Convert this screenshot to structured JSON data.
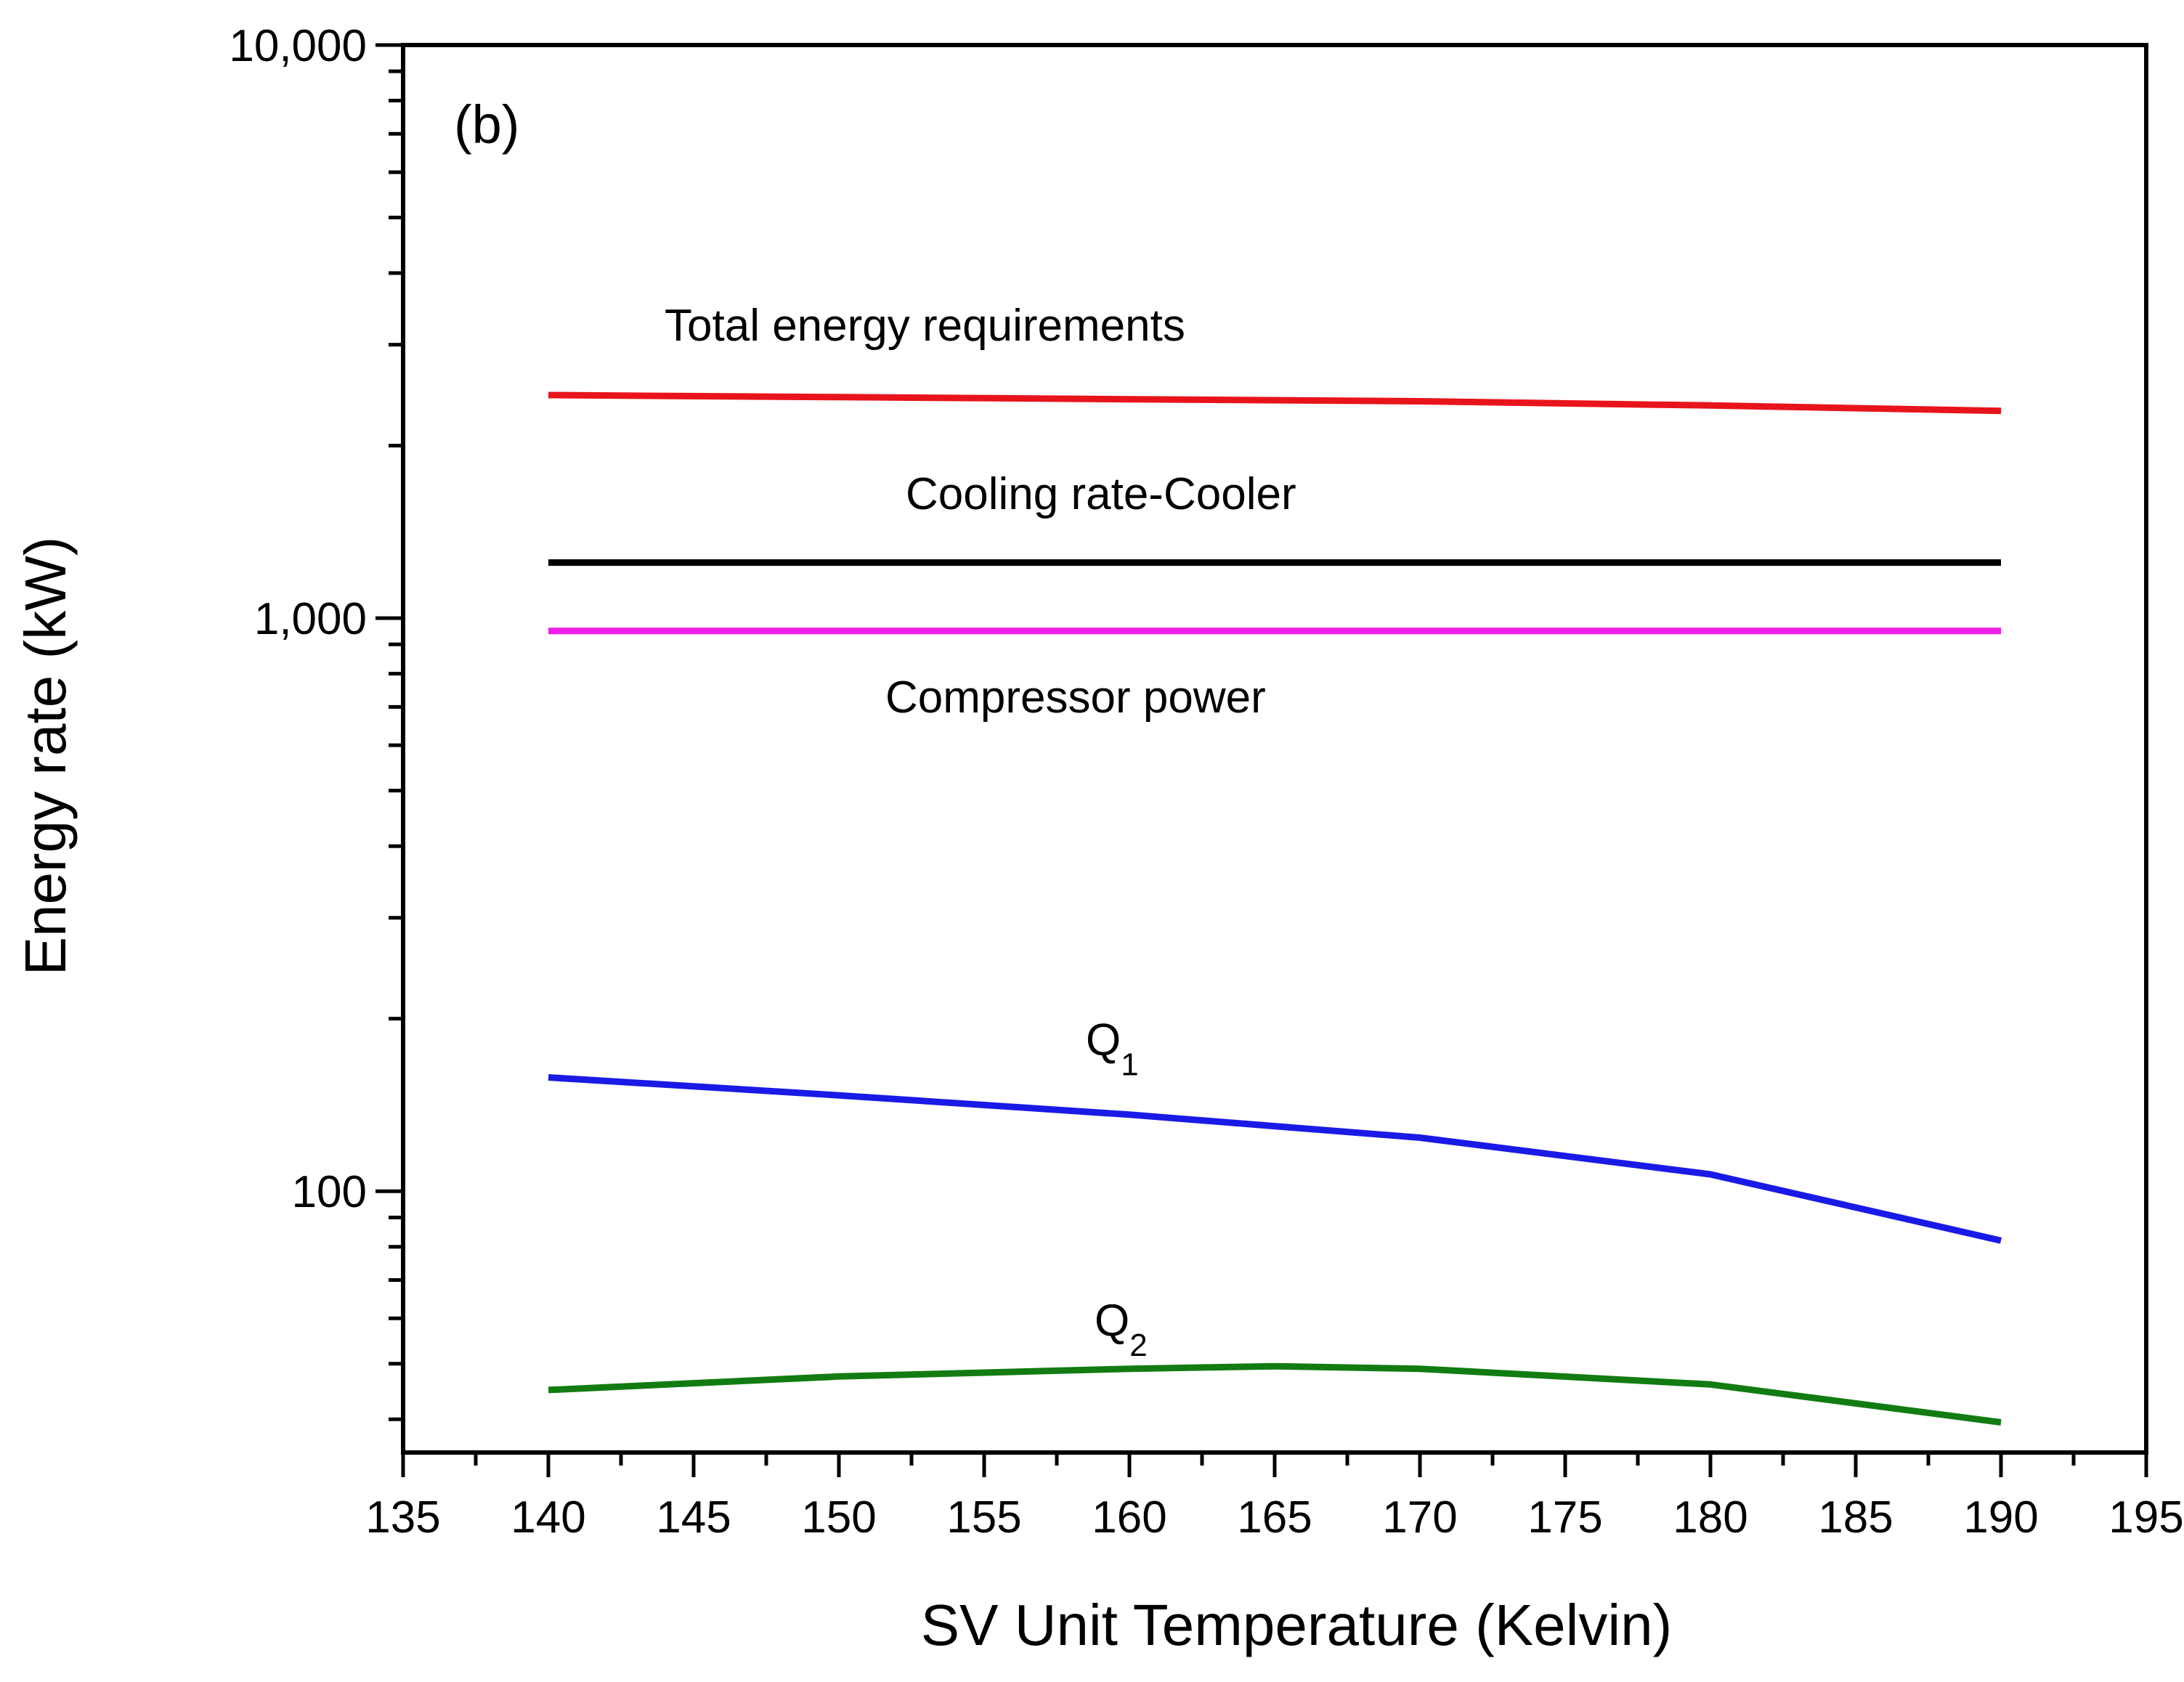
{
  "chart_data": {
    "type": "line",
    "panel_label": "(b)",
    "title": "",
    "xlabel": "SV Unit Temperature (Kelvin)",
    "ylabel": "Energy rate (kW)",
    "xlim": [
      135,
      195
    ],
    "ylim": [
      35,
      10000
    ],
    "yscale": "log",
    "grid": false,
    "x_ticks": [
      135,
      140,
      145,
      150,
      155,
      160,
      165,
      170,
      175,
      180,
      185,
      190,
      195
    ],
    "x_tick_labels": [
      "135",
      "140",
      "145",
      "150",
      "155",
      "160",
      "165",
      "170",
      "175",
      "180",
      "185",
      "190",
      "195"
    ],
    "y_major_ticks": [
      100,
      1000,
      10000
    ],
    "y_tick_labels": [
      "100",
      "1,000",
      "10,000"
    ],
    "series": [
      {
        "name": "Total energy requirements",
        "color": "#e8141c",
        "x": [
          140,
          150,
          160,
          170,
          180,
          190
        ],
        "values": [
          2450,
          2430,
          2410,
          2390,
          2350,
          2300
        ]
      },
      {
        "name": "Cooling rate-Cooler",
        "color": "#000000",
        "x": [
          140,
          150,
          160,
          170,
          180,
          190
        ],
        "values": [
          1250,
          1250,
          1250,
          1250,
          1250,
          1250
        ]
      },
      {
        "name": "Compressor power",
        "color": "#ee1ee8",
        "x": [
          140,
          150,
          160,
          170,
          180,
          190
        ],
        "values": [
          950,
          950,
          950,
          950,
          950,
          950
        ]
      },
      {
        "name": "Q1",
        "color": "#1a1ae6",
        "x": [
          140,
          150,
          160,
          170,
          180,
          190
        ],
        "values": [
          158,
          147,
          136,
          124,
          107,
          82
        ]
      },
      {
        "name": "Q2",
        "color": "#127c12",
        "x": [
          140,
          150,
          160,
          165,
          170,
          180,
          190
        ],
        "values": [
          45,
          47.5,
          49,
          49.5,
          49,
          46,
          39.5
        ]
      }
    ],
    "annotations": [
      {
        "key": "total",
        "text": "Total energy requirements",
        "x": 144,
        "y": 3050
      },
      {
        "key": "cooler",
        "text": "Cooling rate-Cooler",
        "x": 152.3,
        "y": 1550
      },
      {
        "key": "compressor",
        "text": "Compressor power",
        "x": 151.6,
        "y": 685
      },
      {
        "key": "q1",
        "text": "Q",
        "sub": "1",
        "x": 158.5,
        "y": 173
      },
      {
        "key": "q2",
        "text": "Q",
        "sub": "2",
        "x": 158.8,
        "y": 56
      }
    ]
  }
}
